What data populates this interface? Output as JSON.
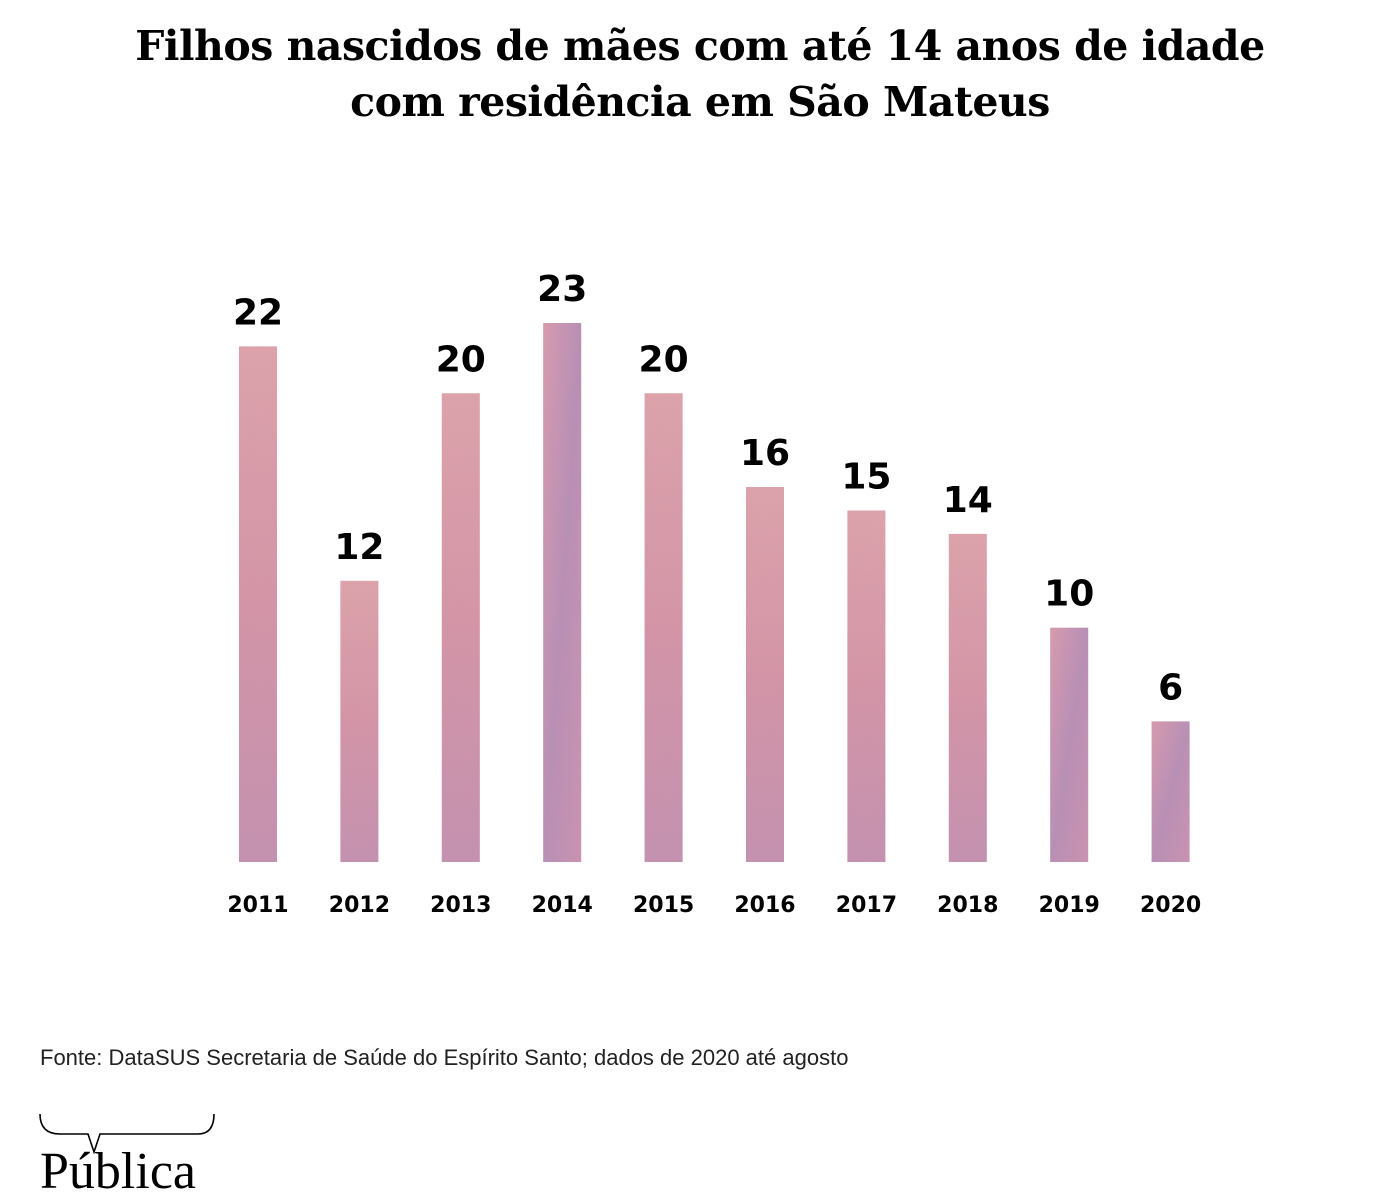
{
  "title": {
    "line1": "Filhos nascidos de mães com até 14 anos de idade",
    "line2": "com residência em São Mateus"
  },
  "source": "Fonte: DataSUS Secretaria de Saúde do Espírito Santo; dados de 2020 até agosto",
  "logo": {
    "text": "Pública",
    "icon": "speech-bracket-icon"
  },
  "colors": {
    "bar_base": "#d9929c",
    "bar_light": "#e6a7a4",
    "bar_purple": "#9b7bb0",
    "text": "#000000"
  },
  "chart_data": {
    "type": "bar",
    "title": "Filhos nascidos de mães com até 14 anos de idade com residência em São Mateus",
    "xlabel": "",
    "ylabel": "",
    "categories": [
      "2011",
      "2012",
      "2013",
      "2014",
      "2015",
      "2016",
      "2017",
      "2018",
      "2019",
      "2020"
    ],
    "values": [
      22,
      12,
      20,
      23,
      20,
      16,
      15,
      14,
      10,
      6
    ],
    "ylim": [
      0,
      23
    ],
    "grid": false,
    "legend": "none",
    "data_labels": true,
    "axis_visible": false
  }
}
